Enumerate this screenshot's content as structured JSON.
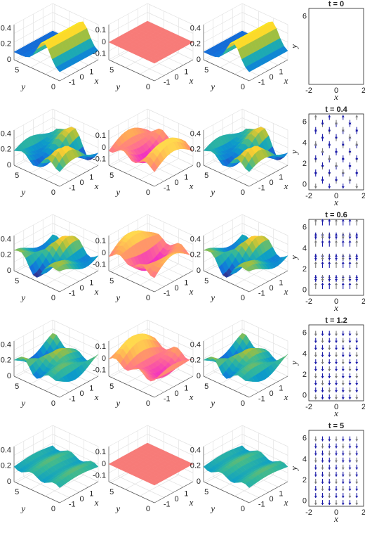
{
  "rows": [
    {
      "title": "t = 0",
      "quiver_yticks": [
        "6"
      ]
    },
    {
      "title": "t = 0.4",
      "quiver_yticks": [
        "0",
        "2",
        "4",
        "6"
      ]
    },
    {
      "title": "t = 0.6",
      "quiver_yticks": [
        "0",
        "2",
        "4",
        "6"
      ]
    },
    {
      "title": "t = 1.2",
      "quiver_yticks": [
        "0",
        "2",
        "4",
        "6"
      ]
    },
    {
      "title": "t = 5",
      "quiver_yticks": [
        "0",
        "2",
        "4",
        "6"
      ]
    }
  ],
  "surface_axes": {
    "u_zticks": [
      "0.4",
      "0.2",
      "0"
    ],
    "w_zticks": [
      "0.1",
      "0",
      "-0.1"
    ],
    "yticks": [
      "5",
      "0"
    ],
    "xticks": [
      "-1",
      "0",
      "1"
    ],
    "xlabel": "x",
    "ylabel": "y"
  },
  "quiver_axes": {
    "xticks": [
      "-2",
      "0",
      "2"
    ],
    "xlabel": "x",
    "ylabel": "y"
  }
}
